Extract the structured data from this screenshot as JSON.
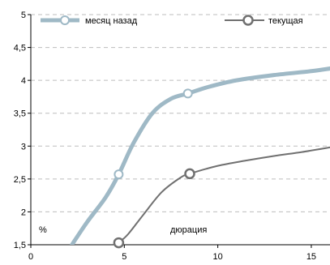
{
  "chart_data": {
    "type": "line",
    "title": "",
    "xlabel": "дюрация",
    "ylabel": "%",
    "xlim": [
      0,
      16
    ],
    "ylim": [
      1.5,
      5
    ],
    "x_ticks": [
      0,
      5,
      10,
      15
    ],
    "x_tick_labels": [
      "0",
      "5",
      "10",
      "15"
    ],
    "y_ticks": [
      1.5,
      2,
      2.5,
      3,
      3.5,
      4,
      4.5,
      5
    ],
    "y_tick_labels": [
      "1,5",
      "2",
      "2,5",
      "3",
      "3,5",
      "4",
      "4,5",
      "5"
    ],
    "grid": "horizontal-dashed",
    "legend_position": "top",
    "series": [
      {
        "name": "месяц назад",
        "color": "#9fb9c6",
        "points": [
          [
            2.2,
            1.5
          ],
          [
            3.0,
            1.84
          ],
          [
            4.0,
            2.22
          ],
          [
            4.7,
            2.57
          ],
          [
            5.5,
            3.05
          ],
          [
            6.5,
            3.5
          ],
          [
            7.5,
            3.72
          ],
          [
            8.4,
            3.8
          ],
          [
            9.5,
            3.9
          ],
          [
            11.0,
            4.0
          ],
          [
            13.0,
            4.08
          ],
          [
            15.0,
            4.14
          ],
          [
            16.0,
            4.18
          ]
        ],
        "markers": [
          [
            4.7,
            2.57
          ],
          [
            8.4,
            3.8
          ]
        ]
      },
      {
        "name": "текущая",
        "color": "#707070",
        "points": [
          [
            4.7,
            1.53
          ],
          [
            5.2,
            1.66
          ],
          [
            6.0,
            1.95
          ],
          [
            7.0,
            2.3
          ],
          [
            8.0,
            2.52
          ],
          [
            8.5,
            2.58
          ],
          [
            10.0,
            2.7
          ],
          [
            11.5,
            2.78
          ],
          [
            13.0,
            2.85
          ],
          [
            14.5,
            2.91
          ],
          [
            16.0,
            2.98
          ]
        ],
        "markers": [
          [
            4.7,
            1.53
          ],
          [
            8.5,
            2.58
          ]
        ]
      }
    ]
  }
}
